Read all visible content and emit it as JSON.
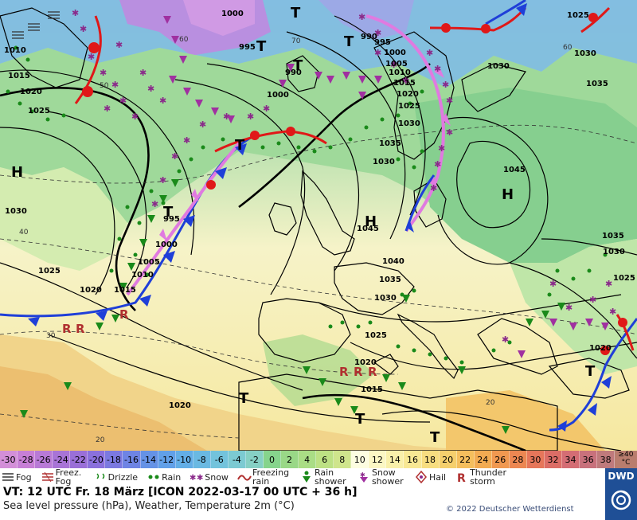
{
  "map": {
    "pressure_labels": [
      "1000",
      "1010",
      "1015",
      "1020",
      "1025",
      "1030",
      "1035",
      "1040",
      "1045",
      "995",
      "990",
      "1005"
    ],
    "isobar_values": {
      "h_west": "1030",
      "h_central": "1045",
      "h_east": "1045",
      "h_northeast": "1035",
      "ne_1030": "1030",
      "sw_1020": "1020",
      "sw_1025": "1025",
      "west_1020": "1020",
      "nw_1025": "1025",
      "nw_1010": "1010",
      "nw_1015": "1015",
      "nw_1020": "1020",
      "atl_995": "995",
      "atl_1000": "1000",
      "atl_1005": "1005",
      "atl_1010": "1010",
      "atl_1015": "1015",
      "atl_1020": "1020",
      "n_1000": "1000",
      "n_990": "990",
      "n_995": "995",
      "n_1000b": "1000",
      "n_990b": "990",
      "n_995b": "995",
      "n_1005": "1005",
      "n_1010": "1010",
      "n_1015": "1015",
      "n_1020": "1020",
      "n_1025": "1025",
      "n_1030": "1030",
      "ne_1025": "1025",
      "ne_1030b": "1030",
      "ne_1035": "1035",
      "c_1035": "1035",
      "c_1030": "1030",
      "c_1040": "1040",
      "c_1035b": "1035",
      "c_1030b": "1030",
      "c_1040b": "1040",
      "c_1035c": "1035",
      "c_1030c": "1030",
      "c_1025": "1025",
      "c_1020": "1020",
      "c_1015": "1015",
      "e_1035": "1035",
      "e_1030": "1030",
      "e_1025": "1025",
      "e_1020": "1020",
      "s_1020": "1020",
      "s_1015": "1015"
    },
    "pressure_centers": {
      "h_west": "H",
      "h_central": "H",
      "h_east": "H",
      "t_north": "T",
      "t_northmid": "T",
      "t_north2": "T",
      "t_atl": "T",
      "t_mid": "T",
      "t_south": "T",
      "t_south2": "T",
      "t_se": "T",
      "t_ne": "T"
    },
    "temp_isolines": [
      "50",
      "40",
      "30",
      "20",
      "60",
      "70"
    ]
  },
  "legend": {
    "scale": [
      {
        "label": "-30",
        "color": "#d38fd8"
      },
      {
        "label": "-28",
        "color": "#c77fd6"
      },
      {
        "label": "-26",
        "color": "#b87ad6"
      },
      {
        "label": "-24",
        "color": "#a874d6"
      },
      {
        "label": "-22",
        "color": "#9a6fd8"
      },
      {
        "label": "-20",
        "color": "#8a70dc"
      },
      {
        "label": "-18",
        "color": "#7b79e0"
      },
      {
        "label": "-16",
        "color": "#6e84e4"
      },
      {
        "label": "-14",
        "color": "#6592e6"
      },
      {
        "label": "-12",
        "color": "#61a0e8"
      },
      {
        "label": "-10",
        "color": "#63aee6"
      },
      {
        "label": "-8",
        "color": "#6ab9e2"
      },
      {
        "label": "-6",
        "color": "#73c3dc"
      },
      {
        "label": "-4",
        "color": "#7ccad2"
      },
      {
        "label": "-2",
        "color": "#86d0c4"
      },
      {
        "label": "0",
        "color": "#86d48c"
      },
      {
        "label": "2",
        "color": "#99d887"
      },
      {
        "label": "4",
        "color": "#aadd85"
      },
      {
        "label": "6",
        "color": "#bde184"
      },
      {
        "label": "8",
        "color": "#cfe58c"
      },
      {
        "label": "10",
        "color": "#fdfde0"
      },
      {
        "label": "12",
        "color": "#fbf7c4"
      },
      {
        "label": "14",
        "color": "#f9f0aa"
      },
      {
        "label": "16",
        "color": "#f8e894"
      },
      {
        "label": "18",
        "color": "#f7dd80"
      },
      {
        "label": "20",
        "color": "#f5cf6d"
      },
      {
        "label": "22",
        "color": "#f4be5d"
      },
      {
        "label": "24",
        "color": "#f2ab52"
      },
      {
        "label": "26",
        "color": "#f09850"
      },
      {
        "label": "28",
        "color": "#ec8752"
      },
      {
        "label": "30",
        "color": "#e6765a"
      },
      {
        "label": "32",
        "color": "#dc6d66"
      },
      {
        "label": "34",
        "color": "#d46d74"
      },
      {
        "label": "36",
        "color": "#c8717c"
      },
      {
        "label": "38",
        "color": "#bf7a7c"
      }
    ],
    "scale_unit": "≥40 °C",
    "symbols": [
      {
        "label": "Fog"
      },
      {
        "label": "Freez. Fog"
      },
      {
        "label": "Drizzle"
      },
      {
        "label": "Rain"
      },
      {
        "label": "Snow"
      },
      {
        "label": "Freezing rain"
      },
      {
        "label": "Rain shower"
      },
      {
        "label": "Snow shower"
      },
      {
        "label": "Hail"
      },
      {
        "label": "Thunder storm"
      }
    ],
    "valid_time": "VT: 12 UTC Fr.  18 März [ICON 2022-03-17  00 UTC + 36 h]",
    "parameters": "Sea level pressure (hPa), Weather, Temperature 2m (°C)",
    "copyright": "© 2022 Deutscher Wetterdienst",
    "logo_text": "DWD"
  },
  "colors": {
    "front_cold": "#1f3fd8",
    "front_warm": "#e01818",
    "front_occluded": "#e07ae0",
    "rain": "#1a8a1a",
    "snow": "#8a2a8a",
    "thunder": "#b03030",
    "isobar": "#000000"
  }
}
